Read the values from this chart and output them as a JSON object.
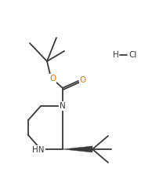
{
  "bg_color": "#ffffff",
  "line_color": "#3a3a3a",
  "lw": 1.3,
  "figsize": [
    1.94,
    2.19
  ],
  "dpi": 100,
  "N_label": "N",
  "NH_label": "HN",
  "O_carbonyl_label": "O",
  "O_ester_label": "O",
  "HCl_H": "H",
  "HCl_Cl": "Cl",
  "N_color": "#3a3a3a",
  "O_color": "#c87820",
  "HCl_color": "#3a3a3a",
  "font_size": 7.5
}
